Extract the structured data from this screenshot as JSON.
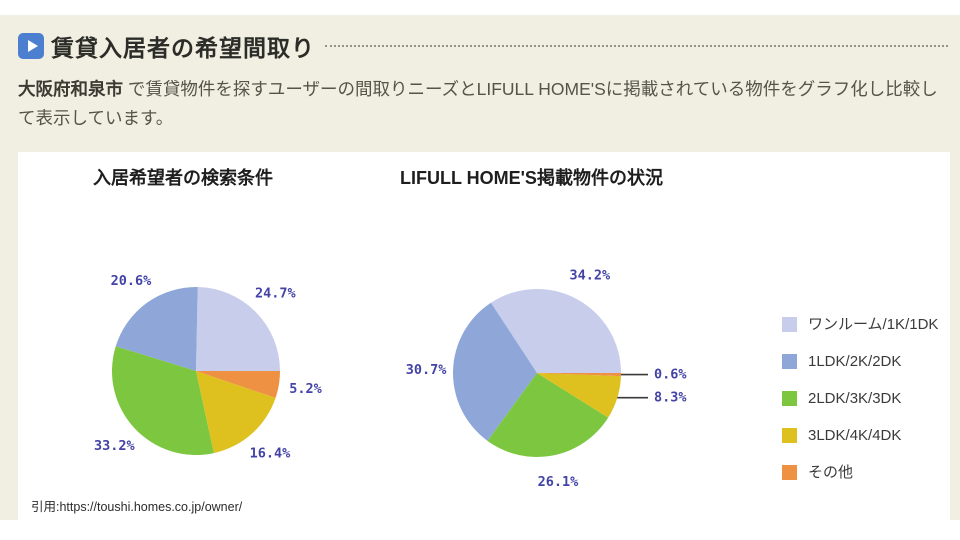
{
  "header": {
    "title": "賃貸入居者の希望間取り"
  },
  "description": {
    "highlight": "大阪府和泉市",
    "rest": " で賃貸物件を探すユーザーの間取りニーズとLIFULL HOME'Sに掲載されている物件をグラフ化し比較して表示しています。"
  },
  "citation": "引用:https://toushi.homes.co.jp/owner/",
  "colors": {
    "accent_blue": "#4d7fd1",
    "section_background": "#f1efe1",
    "panel_background": "#ffffff",
    "pie_label_color": "#4343a7",
    "leader_line_color": "#3a3a3a"
  },
  "chart_data": {
    "type": "pie",
    "start_angle": "east",
    "direction": "counterclockwise",
    "legend": {
      "position": "right",
      "items": [
        {
          "label": "ワンルーム/1K/1DK",
          "color": "#c9cdec"
        },
        {
          "label": "1LDK/2K/2DK",
          "color": "#8ea7d8"
        },
        {
          "label": "2LDK/3K/3DK",
          "color": "#7cc73f"
        },
        {
          "label": "3LDK/4K/4DK",
          "color": "#dec11f"
        },
        {
          "label": "その他",
          "color": "#ee9142"
        }
      ]
    },
    "charts": [
      {
        "title": "入居希望者の検索条件",
        "slices": [
          {
            "name": "ワンルーム/1K/1DK",
            "value": 24.7,
            "label": "24.7%",
            "leader": false
          },
          {
            "name": "1LDK/2K/2DK",
            "value": 20.6,
            "label": "20.6%",
            "leader": false
          },
          {
            "name": "2LDK/3K/3DK",
            "value": 33.2,
            "label": "33.2%",
            "leader": false
          },
          {
            "name": "3LDK/4K/4DK",
            "value": 16.4,
            "label": "16.4%",
            "leader": false
          },
          {
            "name": "その他",
            "value": 5.2,
            "label": "5.2%",
            "leader": false
          }
        ]
      },
      {
        "title": "LIFULL HOME'S掲載物件の状況",
        "slices": [
          {
            "name": "ワンルーム/1K/1DK",
            "value": 34.2,
            "label": "34.2%",
            "leader": false
          },
          {
            "name": "1LDK/2K/2DK",
            "value": 30.7,
            "label": "30.7%",
            "leader": false
          },
          {
            "name": "2LDK/3K/3DK",
            "value": 26.1,
            "label": "26.1%",
            "leader": false
          },
          {
            "name": "3LDK/4K/4DK",
            "value": 8.3,
            "label": "8.3%",
            "leader": true
          },
          {
            "name": "その他",
            "value": 0.6,
            "label": "0.6%",
            "leader": true
          }
        ]
      }
    ]
  }
}
